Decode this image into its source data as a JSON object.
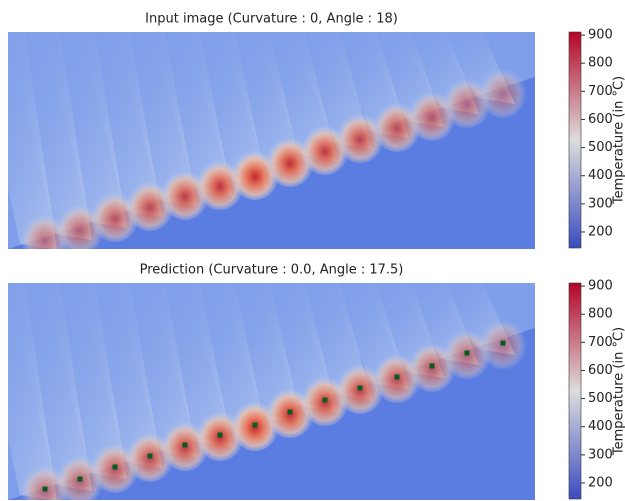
{
  "chart_data": [
    {
      "type": "heatmap",
      "title": "Input image (Curvature : 0, Angle : 18)",
      "colorbar_label": "Temperature (in °C)",
      "clim": [
        143,
        911
      ],
      "cticks": [
        200,
        300,
        400,
        500,
        600,
        700,
        800,
        900
      ],
      "cmap": [
        "#3b4cc0",
        "#dddddd",
        "#b40426"
      ]
    },
    {
      "type": "heatmap",
      "title": "Prediction (Curvature : 0.0, Angle : 17.5)",
      "colorbar_label": "Temperature (in °C)",
      "clim": [
        143,
        911
      ],
      "cticks": [
        200,
        300,
        400,
        500,
        600,
        700,
        800,
        900
      ],
      "cmap": [
        "#3b4cc0",
        "#dddddd",
        "#b40426"
      ]
    }
  ]
}
